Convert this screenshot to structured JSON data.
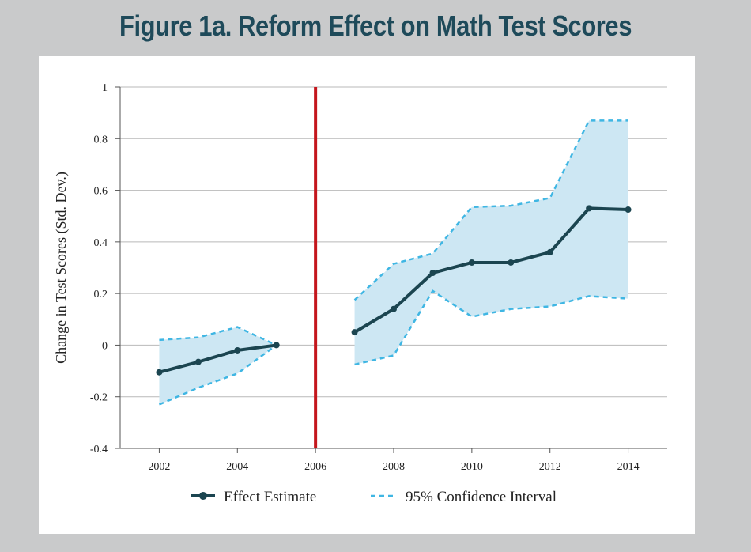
{
  "figure": {
    "title": "Figure 1a. Reform Effect on Math Test Scores"
  },
  "chart_data": {
    "type": "line",
    "title": "Figure 1a. Reform Effect on Math Test Scores",
    "xlabel": "",
    "ylabel": "Change in Test Scores (Std. Dev.)",
    "xlim": [
      2001,
      2015
    ],
    "ylim": [
      -0.4,
      1
    ],
    "x_ticks": [
      2002,
      2004,
      2006,
      2008,
      2010,
      2012,
      2014
    ],
    "y_ticks": [
      -0.4,
      -0.2,
      0,
      0.2,
      0.4,
      0.6,
      0.8,
      1
    ],
    "y_tick_labels": [
      "-0.4",
      "-0.2",
      "0",
      "0.2",
      "0.4",
      "0.6",
      "0.8",
      "1"
    ],
    "grid": "horizontal",
    "reform_year": 2006,
    "segments": [
      {
        "x": [
          2002,
          2003,
          2004,
          2005
        ],
        "estimate": [
          -0.105,
          -0.065,
          -0.02,
          0.0
        ],
        "ci_upper": [
          0.02,
          0.03,
          0.07,
          0.0
        ],
        "ci_lower": [
          -0.23,
          -0.165,
          -0.11,
          0.0
        ]
      },
      {
        "x": [
          2007,
          2008,
          2009,
          2010,
          2011,
          2012,
          2013,
          2014
        ],
        "estimate": [
          0.05,
          0.14,
          0.28,
          0.32,
          0.32,
          0.36,
          0.53,
          0.525
        ],
        "ci_upper": [
          0.175,
          0.315,
          0.355,
          0.535,
          0.54,
          0.57,
          0.87,
          0.87
        ],
        "ci_lower": [
          -0.075,
          -0.04,
          0.21,
          0.11,
          0.14,
          0.15,
          0.19,
          0.18
        ]
      }
    ],
    "series": [
      {
        "name": "Effect Estimate",
        "key": "estimate"
      },
      {
        "name": "95% Confidence Interval",
        "key": "ci"
      }
    ],
    "legend": {
      "placement": "bottom",
      "estimate_label": "Effect Estimate",
      "ci_label": "95% Confidence Interval"
    },
    "colors": {
      "estimate": "#1b4550",
      "ci_line": "#3fb6e3",
      "ci_fill": "#cde7f3",
      "reform_line": "#c4161c",
      "grid": "#b9b9b9",
      "axis": "#555555"
    }
  }
}
